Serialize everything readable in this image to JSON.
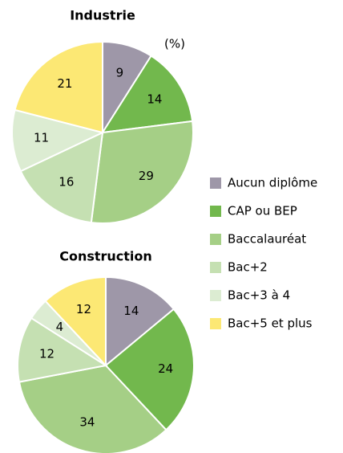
{
  "chart_data": [
    {
      "type": "pie",
      "title": "Industrie",
      "unit_label": "(%)",
      "values": [
        9,
        14,
        29,
        16,
        11,
        21
      ]
    },
    {
      "type": "pie",
      "title": "Construction",
      "values": [
        14,
        24,
        34,
        12,
        4,
        12
      ]
    }
  ],
  "legend": {
    "labels": [
      "Aucun diplôme",
      "CAP ou BEP",
      "Baccalauréat",
      "Bac+2",
      "Bac+3 à 4",
      "Bac+5 et plus"
    ],
    "colors": [
      "#9e97a8",
      "#72b84d",
      "#a5cf86",
      "#c5e0b2",
      "#dcecd2",
      "#fce874"
    ]
  }
}
